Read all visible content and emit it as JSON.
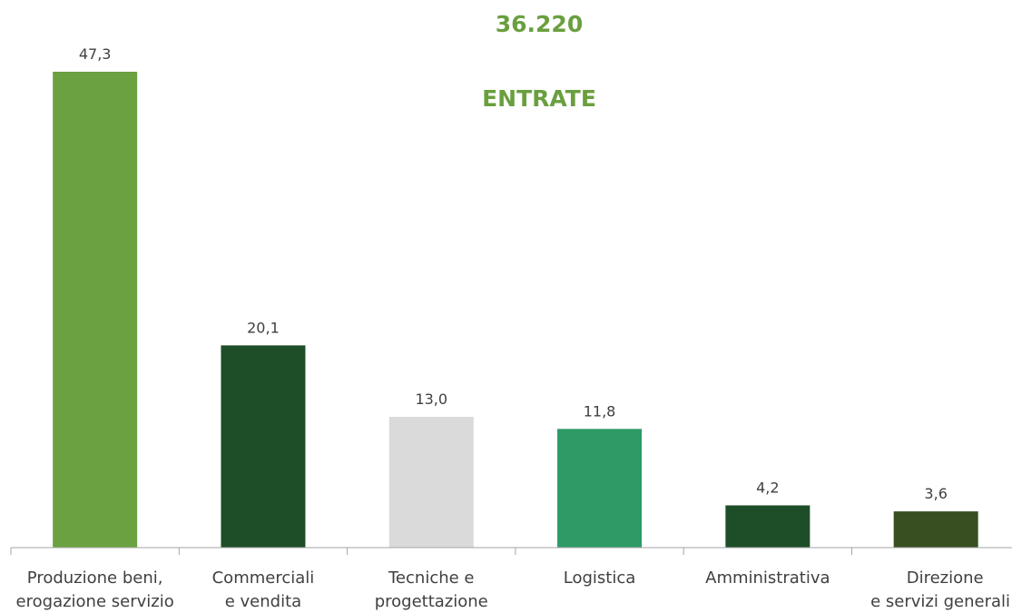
{
  "chart_data": {
    "type": "bar",
    "title": "36.220",
    "subtitle": "ENTRATE",
    "categories": [
      [
        "Produzione beni,",
        "erogazione servizio"
      ],
      [
        "Commerciali",
        "e vendita"
      ],
      [
        "Tecniche e",
        "progettazione"
      ],
      [
        "Logistica"
      ],
      [
        "Amministrativa"
      ],
      [
        "Direzione",
        "e servizi generali"
      ]
    ],
    "values": [
      47.3,
      20.1,
      13.0,
      11.8,
      4.2,
      3.6
    ],
    "value_labels": [
      "47,3",
      "20,1",
      "13,0",
      "11,8",
      "4,2",
      "3,6"
    ],
    "colors": [
      "#6ba141",
      "#1e4e27",
      "#dadadb",
      "#2e9a66",
      "#1e4e27",
      "#374f21"
    ],
    "ylim": [
      0,
      47.3
    ],
    "grid": false,
    "legend": "none"
  }
}
